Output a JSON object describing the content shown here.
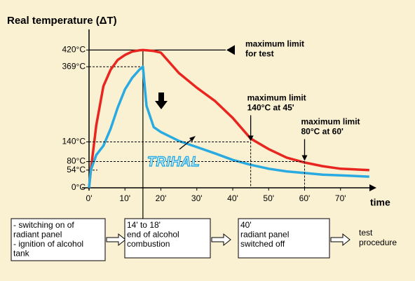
{
  "chart_data": {
    "type": "line",
    "title": "Real temperature (ΔT)",
    "xlabel": "time",
    "x": [
      0,
      0.5,
      2,
      4,
      6,
      8,
      10,
      12,
      14,
      15,
      16,
      18,
      20,
      25,
      30,
      35,
      40,
      45,
      50,
      55,
      60,
      65,
      70,
      78
    ],
    "series": [
      {
        "color": "#e8261f",
        "values": [
          0,
          54,
          190,
          310,
          360,
          390,
          405,
          415,
          419,
          420,
          419,
          417,
          412,
          350,
          305,
          265,
          213,
          150,
          118,
          92,
          77,
          66,
          58,
          54
        ]
      },
      {
        "color": "#29abe2",
        "values": [
          0,
          54,
          100,
          128,
          180,
          245,
          300,
          335,
          360,
          369,
          250,
          185,
          170,
          143,
          124,
          105,
          85,
          70,
          58,
          50,
          45,
          40,
          38,
          34
        ]
      }
    ],
    "xlim": [
      0,
      80
    ],
    "ylim": [
      0,
      440
    ],
    "xticks": [
      {
        "value": 0,
        "label": "0'"
      },
      {
        "value": 10,
        "label": "10'"
      },
      {
        "value": 20,
        "label": "20'"
      },
      {
        "value": 30,
        "label": "30'"
      },
      {
        "value": 40,
        "label": "40'"
      },
      {
        "value": 50,
        "label": "50'"
      },
      {
        "value": 60,
        "label": "60'"
      },
      {
        "value": 70,
        "label": "70'"
      }
    ],
    "yticks": [
      {
        "value": 0,
        "label": "0°C"
      },
      {
        "value": 54,
        "label": "54°C"
      },
      {
        "value": 80,
        "label": "80°C"
      },
      {
        "value": 140,
        "label": "140°C"
      },
      {
        "value": 369,
        "label": "369°C"
      },
      {
        "value": 420,
        "label": "420°C"
      }
    ],
    "annotations": [
      {
        "lines": [
          "maximum limit",
          "for test"
        ],
        "y": 420
      },
      {
        "lines": [
          "maximum limit",
          "140°C at 45'"
        ],
        "x": 45,
        "y": 140
      },
      {
        "lines": [
          "maximum limit",
          "80°C at 60'"
        ],
        "x": 60,
        "y": 80
      }
    ],
    "logo": "TRIHAL",
    "steps": [
      [
        "- switching on of",
        "radiant panel",
        "- ignition of alcohol",
        "tank"
      ],
      [
        "14' to 18'",
        "end of alcohol",
        "combustion"
      ],
      [
        "40'",
        "radiant panel",
        "switched off"
      ]
    ],
    "result": [
      "test",
      "procedure"
    ]
  }
}
